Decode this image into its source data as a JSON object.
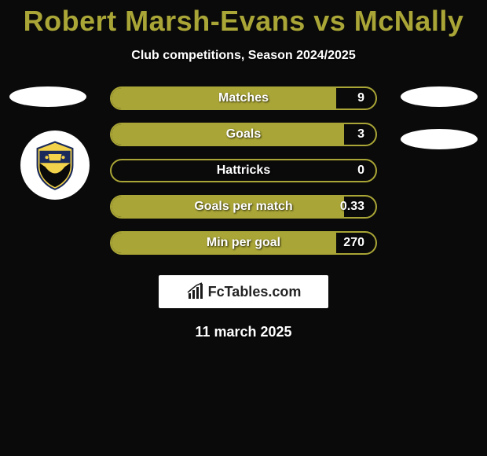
{
  "title": "Robert Marsh-Evans vs McNally",
  "subtitle": "Club competitions, Season 2024/2025",
  "date": "11 march 2025",
  "logo_text": "FcTables.com",
  "colors": {
    "accent": "#a9a536",
    "background": "#0a0a0a",
    "white": "#ffffff"
  },
  "ellipses": {
    "left_count": 1,
    "right_count": 2
  },
  "stats": [
    {
      "label": "Matches",
      "value": "9",
      "fill_pct": 85
    },
    {
      "label": "Goals",
      "value": "3",
      "fill_pct": 88
    },
    {
      "label": "Hattricks",
      "value": "0",
      "fill_pct": 0
    },
    {
      "label": "Goals per match",
      "value": "0.33",
      "fill_pct": 88
    },
    {
      "label": "Min per goal",
      "value": "270",
      "fill_pct": 85
    }
  ]
}
